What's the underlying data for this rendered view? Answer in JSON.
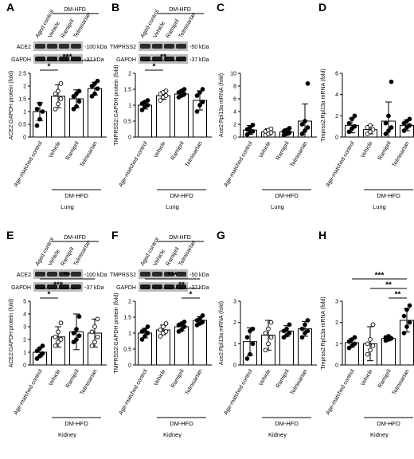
{
  "group_label": "DM-HFD",
  "blot_strings": {
    "aged_control": "Aged control",
    "vehicle": "Vehicle",
    "ramipril": "Ramipril",
    "telmisartan": "Telmisartan",
    "gapdh": "GAPDH",
    "gapdh_kda": "-37 kDa",
    "ace2": "ACE2",
    "ace2_kda": "-100 kDa",
    "tmprss2": "TMPRSS2",
    "tmprss2_kda": "-50 kDa"
  },
  "chart_data": [
    {
      "panel": "A",
      "type": "bar",
      "categories": [
        "Age-matched control",
        "Vehicle",
        "Ramipril",
        "Telmisartan"
      ],
      "ylabel": "ACE2:GAPDH protein (fold)",
      "tissue": "Lung",
      "group": "DM-HFD",
      "ylim": [
        0,
        2.5
      ],
      "yticks": [
        0,
        0.5,
        1.0,
        1.5,
        2.0,
        2.5
      ],
      "values": [
        1.0,
        1.6,
        1.5,
        1.9
      ],
      "errors": [
        0.35,
        0.45,
        0.35,
        0.25
      ],
      "points": [
        [
          0.45,
          0.7,
          1.0,
          1.1,
          1.3
        ],
        [
          1.1,
          1.3,
          1.5,
          1.7,
          1.8,
          2.1
        ],
        [
          1.1,
          1.2,
          1.4,
          1.6,
          1.7,
          1.8
        ],
        [
          1.6,
          1.7,
          1.9,
          2.0,
          2.1,
          2.2
        ]
      ],
      "markers": [
        "filled",
        "open",
        "filled",
        "filled"
      ],
      "significance": [
        {
          "from": 0,
          "to": 1,
          "label": "*"
        },
        {
          "from": 0,
          "to": 3,
          "label": "***"
        }
      ]
    },
    {
      "panel": "B",
      "type": "bar",
      "categories": [
        "Age-matched control",
        "Vehicle",
        "Ramipril",
        "Telmisartan"
      ],
      "ylabel": "TMPRSS2:GAPDH protein (fold)",
      "tissue": "Lung",
      "group": "DM-HFD",
      "ylim": [
        0,
        2.0
      ],
      "yticks": [
        0,
        0.5,
        1.0,
        1.5,
        2.0
      ],
      "values": [
        1.0,
        1.3,
        1.35,
        1.15
      ],
      "errors": [
        0.12,
        0.12,
        0.08,
        0.3
      ],
      "points": [
        [
          0.85,
          0.95,
          1.0,
          1.05,
          1.1,
          1.15
        ],
        [
          1.15,
          1.25,
          1.3,
          1.35,
          1.4,
          1.45
        ],
        [
          1.25,
          1.3,
          1.35,
          1.4,
          1.45,
          1.5
        ],
        [
          0.8,
          1.0,
          1.1,
          1.3,
          1.4,
          1.5
        ]
      ],
      "markers": [
        "filled",
        "open",
        "filled",
        "filled"
      ],
      "significance": [
        {
          "from": 0,
          "to": 1,
          "label": "*"
        },
        {
          "from": 0,
          "to": 2,
          "label": "**"
        }
      ]
    },
    {
      "panel": "C",
      "type": "bar",
      "categories": [
        "Age-matched control",
        "Vehicle",
        "Ramipril",
        "Telmisartan"
      ],
      "ylabel": "Ace2:Rpl13a mRNA (fold)",
      "tissue": "Lung",
      "group": "DM-HFD",
      "ylim": [
        0,
        10
      ],
      "yticks": [
        0,
        2,
        4,
        6,
        8,
        10
      ],
      "values": [
        1.1,
        0.8,
        0.8,
        2.5
      ],
      "errors": [
        0.7,
        0.5,
        0.5,
        2.7
      ],
      "points": [
        [
          0.4,
          0.7,
          0.9,
          1.2,
          1.5,
          1.9
        ],
        [
          0.3,
          0.5,
          0.7,
          0.9,
          1.1,
          1.3
        ],
        [
          0.3,
          0.5,
          0.7,
          0.9,
          1.1,
          1.4
        ],
        [
          0.5,
          1.0,
          1.5,
          2.0,
          2.5,
          8.4
        ]
      ],
      "markers": [
        "filled",
        "open",
        "filled",
        "filled"
      ],
      "significance": []
    },
    {
      "panel": "D",
      "type": "bar",
      "categories": [
        "Age-matched control",
        "Vehicle",
        "Ramipril",
        "Telmisartan"
      ],
      "ylabel": "Tmprss2:Rpl13a mRNA (fold)",
      "tissue": "Lung",
      "group": "DM-HFD",
      "ylim": [
        0,
        6
      ],
      "yticks": [
        0,
        2,
        4,
        6
      ],
      "values": [
        1.1,
        0.7,
        1.5,
        1.1
      ],
      "errors": [
        0.7,
        0.4,
        1.8,
        0.5
      ],
      "points": [
        [
          0.5,
          0.8,
          1.0,
          1.3,
          1.7,
          2.0
        ],
        [
          0.3,
          0.5,
          0.7,
          0.9,
          1.1
        ],
        [
          0.3,
          0.6,
          0.9,
          1.3,
          2.0,
          5.2
        ],
        [
          0.6,
          0.9,
          1.1,
          1.3,
          1.5,
          1.7
        ]
      ],
      "markers": [
        "filled",
        "open",
        "filled",
        "filled"
      ],
      "significance": []
    },
    {
      "panel": "E",
      "type": "bar",
      "categories": [
        "Age-matched control",
        "Vehicle",
        "Ramipril",
        "Telmisartan"
      ],
      "ylabel": "ACE2:GAPDH protein (fold)",
      "tissue": "Kidney",
      "group": "DM-HFD",
      "ylim": [
        0,
        5
      ],
      "yticks": [
        0,
        1,
        2,
        3,
        4,
        5
      ],
      "values": [
        1.0,
        2.2,
        2.6,
        2.5
      ],
      "errors": [
        0.35,
        0.8,
        1.4,
        1.1
      ],
      "points": [
        [
          0.5,
          0.7,
          0.9,
          1.1,
          1.3,
          1.5
        ],
        [
          1.5,
          1.8,
          2.0,
          2.2,
          2.6,
          3.3
        ],
        [
          1.8,
          2.0,
          2.3,
          2.5,
          2.8,
          3.8
        ],
        [
          1.5,
          1.8,
          2.2,
          2.6,
          3.0,
          3.6
        ]
      ],
      "markers": [
        "filled",
        "open",
        "filled",
        "open"
      ],
      "significance": [
        {
          "from": 0,
          "to": 1,
          "label": "*"
        },
        {
          "from": 0,
          "to": 2,
          "label": "***"
        },
        {
          "from": 0,
          "to": 3,
          "label": "**"
        }
      ]
    },
    {
      "panel": "F",
      "type": "bar",
      "categories": [
        "Age-matched control",
        "Vehicle",
        "Ramipril",
        "Telmisartan"
      ],
      "ylabel": "TMPRSS2:GAPDH protein (fold)",
      "tissue": "Kidney",
      "group": "DM-HFD",
      "ylim": [
        0,
        2.0
      ],
      "yticks": [
        0,
        0.5,
        1.0,
        1.5,
        2.0
      ],
      "values": [
        1.0,
        1.1,
        1.2,
        1.4
      ],
      "errors": [
        0.15,
        0.15,
        0.12,
        0.12
      ],
      "points": [
        [
          0.8,
          0.9,
          1.0,
          1.05,
          1.1,
          1.2
        ],
        [
          0.9,
          1.0,
          1.05,
          1.1,
          1.2,
          1.3
        ],
        [
          1.05,
          1.1,
          1.2,
          1.25,
          1.3,
          1.35
        ],
        [
          1.25,
          1.3,
          1.35,
          1.4,
          1.45,
          1.55
        ]
      ],
      "markers": [
        "filled",
        "open",
        "filled",
        "filled"
      ],
      "significance": [
        {
          "from": 2,
          "to": 3,
          "label": "*"
        },
        {
          "from": 1,
          "to": 3,
          "label": "**"
        },
        {
          "from": 0,
          "to": 3,
          "label": "***"
        }
      ]
    },
    {
      "panel": "G",
      "type": "bar",
      "categories": [
        "Age-matched control",
        "Vehicle",
        "Ramipril",
        "Telmisartan"
      ],
      "ylabel": "Ace2:Rpl13a mRNA (fold)",
      "tissue": "Kidney",
      "group": "DM-HFD",
      "ylim": [
        0,
        3
      ],
      "yticks": [
        0,
        1,
        2,
        3
      ],
      "values": [
        1.1,
        1.4,
        1.6,
        1.7
      ],
      "errors": [
        0.65,
        0.7,
        0.25,
        0.35
      ],
      "points": [
        [
          0.3,
          0.5,
          1.0,
          1.3,
          1.6,
          1.7
        ],
        [
          0.7,
          1.0,
          1.3,
          1.5,
          1.7,
          2.0
        ],
        [
          1.3,
          1.4,
          1.5,
          1.6,
          1.7,
          1.9
        ],
        [
          1.3,
          1.5,
          1.6,
          1.7,
          1.9,
          2.1
        ]
      ],
      "markers": [
        "filled",
        "open",
        "filled",
        "filled"
      ],
      "significance": []
    },
    {
      "panel": "H",
      "type": "bar",
      "categories": [
        "Age-matched control",
        "Vehicle",
        "Ramipril",
        "Telmisartan"
      ],
      "ylabel": "Tmprss2:Rpl13a mRNA (fold)",
      "tissue": "Kidney",
      "group": "DM-HFD",
      "ylim": [
        0,
        3
      ],
      "yticks": [
        0,
        1,
        2,
        3
      ],
      "values": [
        1.05,
        1.0,
        1.25,
        2.1
      ],
      "errors": [
        0.2,
        0.8,
        0.1,
        0.55
      ],
      "points": [
        [
          0.8,
          0.9,
          1.0,
          1.1,
          1.2,
          1.3
        ],
        [
          0.5,
          0.7,
          0.9,
          1.0,
          1.2,
          1.9
        ],
        [
          1.15,
          1.2,
          1.25,
          1.3,
          1.35
        ],
        [
          1.5,
          1.8,
          2.0,
          2.3,
          2.6,
          2.8
        ]
      ],
      "markers": [
        "filled",
        "open",
        "filled",
        "filled"
      ],
      "significance": [
        {
          "from": 2,
          "to": 3,
          "label": "**"
        },
        {
          "from": 1,
          "to": 3,
          "label": "**"
        },
        {
          "from": 0,
          "to": 3,
          "label": "***"
        }
      ]
    }
  ]
}
